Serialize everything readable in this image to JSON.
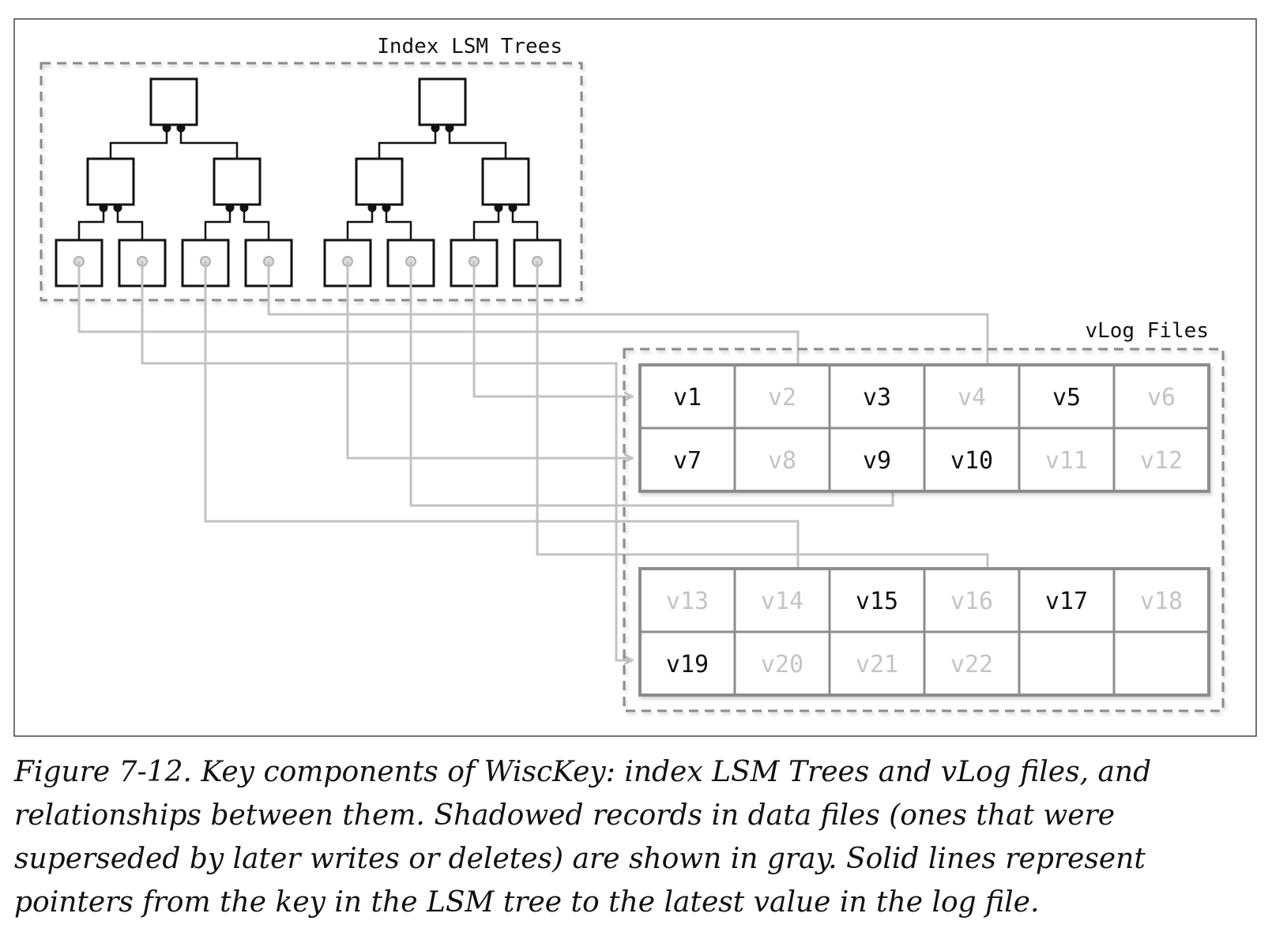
{
  "diagram": {
    "index_title": "Index LSM Trees",
    "vlog_title": "vLog Files",
    "vlog_files": [
      {
        "rows": [
          [
            {
              "label": "v1",
              "latest": true
            },
            {
              "label": "v2",
              "latest": false
            },
            {
              "label": "v3",
              "latest": true
            },
            {
              "label": "v4",
              "latest": false
            },
            {
              "label": "v5",
              "latest": true
            },
            {
              "label": "v6",
              "latest": false
            }
          ],
          [
            {
              "label": "v7",
              "latest": true
            },
            {
              "label": "v8",
              "latest": false
            },
            {
              "label": "v9",
              "latest": true
            },
            {
              "label": "v10",
              "latest": true
            },
            {
              "label": "v11",
              "latest": false
            },
            {
              "label": "v12",
              "latest": false
            }
          ]
        ]
      },
      {
        "rows": [
          [
            {
              "label": "v13",
              "latest": false
            },
            {
              "label": "v14",
              "latest": false
            },
            {
              "label": "v15",
              "latest": true
            },
            {
              "label": "v16",
              "latest": false
            },
            {
              "label": "v17",
              "latest": true
            },
            {
              "label": "v18",
              "latest": false
            }
          ],
          [
            {
              "label": "v19",
              "latest": true
            },
            {
              "label": "v20",
              "latest": false
            },
            {
              "label": "v21",
              "latest": false
            },
            {
              "label": "v22",
              "latest": false
            },
            {
              "label": "",
              "latest": false
            },
            {
              "label": "",
              "latest": false
            }
          ]
        ]
      }
    ],
    "colors": {
      "ink": "#111111",
      "gray_text": "#c4c4c4",
      "grid": "#8c8c8c",
      "pointer": "#c2c2c2",
      "dash": "#8a8a8a"
    }
  },
  "caption": "Figure 7-12. Key components of WiscKey: index LSM Trees and vLog files, and relationships between them. Shadowed records in data files (ones that were superseded by later writes or deletes) are shown in gray. Solid lines represent pointers from the key in the LSM tree to the latest value in the log file."
}
